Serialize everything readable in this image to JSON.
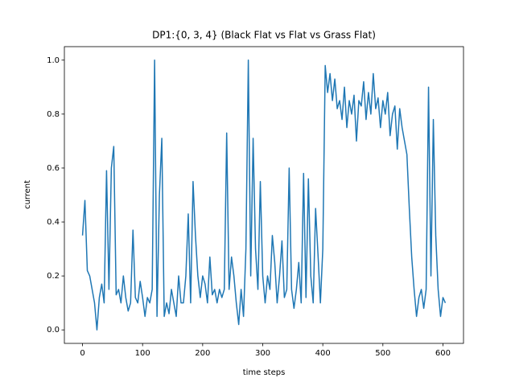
{
  "chart_data": {
    "type": "line",
    "title": "DP1:{0, 3, 4} (Black Flat vs Flat vs Grass Flat)",
    "xlabel": "time steps",
    "ylabel": "current",
    "color": "#1f77b4",
    "xlim": [
      -30.2,
      634.2
    ],
    "ylim": [
      -0.05,
      1.05
    ],
    "xticks": [
      0,
      100,
      200,
      300,
      400,
      500,
      600
    ],
    "yticks": [
      {
        "value": 0,
        "label": "0.0"
      },
      0.2,
      0.4,
      0.6,
      0.8,
      {
        "value": 1,
        "label": "1.0"
      }
    ],
    "x": [
      0,
      4,
      8,
      12,
      16,
      20,
      24,
      28,
      32,
      36,
      40,
      44,
      48,
      52,
      56,
      60,
      64,
      68,
      72,
      76,
      80,
      84,
      88,
      92,
      96,
      100,
      104,
      108,
      112,
      116,
      120,
      124,
      128,
      132,
      136,
      140,
      144,
      148,
      152,
      156,
      160,
      164,
      168,
      172,
      176,
      180,
      184,
      188,
      192,
      196,
      200,
      204,
      208,
      212,
      216,
      220,
      224,
      228,
      232,
      236,
      240,
      244,
      248,
      252,
      256,
      260,
      264,
      268,
      272,
      276,
      280,
      284,
      288,
      292,
      296,
      300,
      304,
      308,
      312,
      316,
      320,
      324,
      328,
      332,
      336,
      340,
      344,
      348,
      352,
      356,
      360,
      364,
      368,
      372,
      376,
      380,
      384,
      388,
      392,
      396,
      400,
      404,
      408,
      412,
      416,
      420,
      424,
      428,
      432,
      436,
      440,
      444,
      448,
      452,
      456,
      460,
      464,
      468,
      472,
      476,
      480,
      484,
      488,
      492,
      496,
      500,
      504,
      508,
      512,
      516,
      520,
      524,
      528,
      532,
      536,
      540,
      544,
      548,
      552,
      556,
      560,
      564,
      568,
      572,
      576,
      580,
      584,
      588,
      592,
      596,
      600,
      604
    ],
    "values": [
      0.35,
      0.48,
      0.22,
      0.2,
      0.15,
      0.1,
      0.0,
      0.12,
      0.17,
      0.1,
      0.59,
      0.15,
      0.6,
      0.68,
      0.13,
      0.15,
      0.1,
      0.2,
      0.12,
      0.07,
      0.1,
      0.37,
      0.12,
      0.1,
      0.18,
      0.12,
      0.05,
      0.12,
      0.1,
      0.15,
      1.0,
      0.05,
      0.5,
      0.71,
      0.05,
      0.1,
      0.06,
      0.15,
      0.1,
      0.05,
      0.2,
      0.1,
      0.1,
      0.2,
      0.43,
      0.1,
      0.55,
      0.35,
      0.2,
      0.12,
      0.2,
      0.17,
      0.1,
      0.27,
      0.13,
      0.15,
      0.1,
      0.15,
      0.12,
      0.15,
      0.73,
      0.15,
      0.27,
      0.2,
      0.1,
      0.02,
      0.15,
      0.05,
      0.3,
      1.0,
      0.2,
      0.71,
      0.3,
      0.15,
      0.55,
      0.2,
      0.1,
      0.2,
      0.15,
      0.35,
      0.25,
      0.1,
      0.2,
      0.33,
      0.12,
      0.15,
      0.6,
      0.15,
      0.08,
      0.15,
      0.25,
      0.1,
      0.58,
      0.12,
      0.56,
      0.2,
      0.1,
      0.45,
      0.28,
      0.1,
      0.3,
      0.98,
      0.88,
      0.95,
      0.85,
      0.93,
      0.82,
      0.85,
      0.78,
      0.9,
      0.75,
      0.85,
      0.8,
      0.87,
      0.7,
      0.85,
      0.83,
      0.92,
      0.78,
      0.88,
      0.8,
      0.95,
      0.82,
      0.86,
      0.75,
      0.85,
      0.8,
      0.88,
      0.72,
      0.8,
      0.83,
      0.67,
      0.82,
      0.75,
      0.7,
      0.65,
      0.45,
      0.27,
      0.15,
      0.05,
      0.12,
      0.15,
      0.08,
      0.15,
      0.9,
      0.2,
      0.78,
      0.35,
      0.15,
      0.05,
      0.12,
      0.1
    ]
  }
}
